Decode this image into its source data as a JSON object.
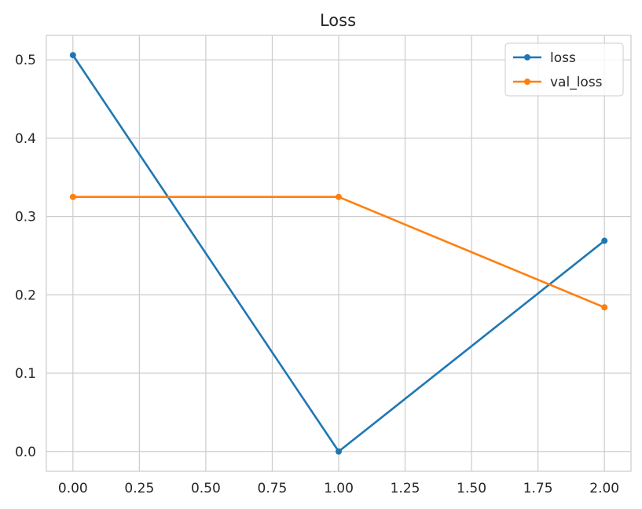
{
  "chart_data": {
    "type": "line",
    "title": "Loss",
    "xlabel": "",
    "ylabel": "",
    "x": [
      0,
      1,
      2
    ],
    "xlim": [
      -0.1,
      2.1
    ],
    "ylim": [
      -0.0253,
      0.5313
    ],
    "xticks": [
      0.0,
      0.25,
      0.5,
      0.75,
      1.0,
      1.25,
      1.5,
      1.75,
      2.0
    ],
    "xtick_labels": [
      "0.00",
      "0.25",
      "0.50",
      "0.75",
      "1.00",
      "1.25",
      "1.50",
      "1.75",
      "2.00"
    ],
    "yticks": [
      0.0,
      0.1,
      0.2,
      0.3,
      0.4,
      0.5
    ],
    "ytick_labels": [
      "0.0",
      "0.1",
      "0.2",
      "0.3",
      "0.4",
      "0.5"
    ],
    "grid": true,
    "legend_position": "top-right",
    "series": [
      {
        "name": "loss",
        "color": "#1f77b4",
        "values": [
          0.506,
          0.0,
          0.269
        ]
      },
      {
        "name": "val_loss",
        "color": "#ff7f0e",
        "values": [
          0.325,
          0.325,
          0.184
        ]
      }
    ]
  }
}
